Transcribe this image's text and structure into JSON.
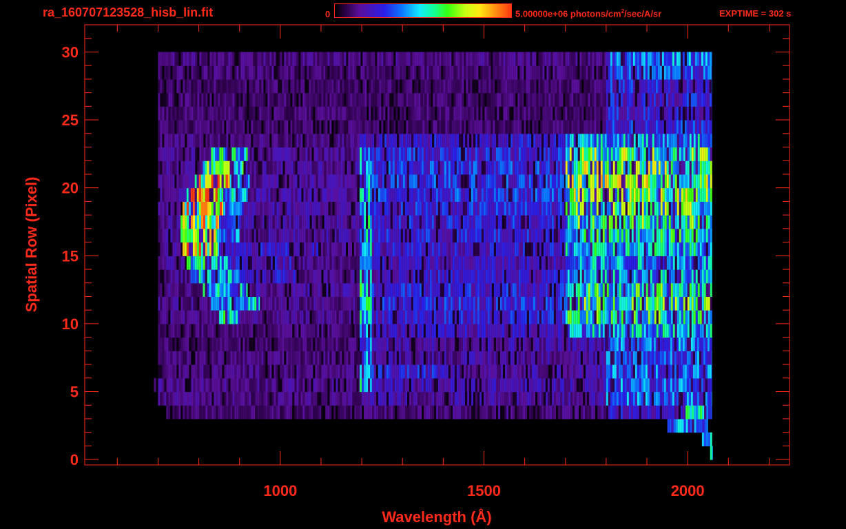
{
  "header": {
    "file_name": "ra_160707123528_hisb_lin.fit",
    "colorbar_min": "0",
    "colorbar_max_value": "5.00000e+06 photons/cm",
    "colorbar_max_exp": "2",
    "colorbar_max_unit": "/sec/A/sr",
    "exptime": "EXPTIME = 302 s"
  },
  "colors": {
    "text": "#ff2a1a",
    "background": "#000000",
    "colormap": [
      "#000000",
      "#5a0f9a",
      "#2a1ee6",
      "#0a78ff",
      "#12eaff",
      "#36ff12",
      "#ffea12",
      "#ff3a12"
    ]
  },
  "chart_data": {
    "type": "heatmap",
    "title": "",
    "xlabel": "Wavelength (Å)",
    "ylabel": "Spatial Row (Pixel)",
    "xlim": [
      520,
      2250
    ],
    "ylim": [
      -0.4,
      32
    ],
    "x_ticks": [
      1000,
      1500,
      2000
    ],
    "x_minor_step": 100,
    "y_ticks": [
      0,
      5,
      10,
      15,
      20,
      25,
      30
    ],
    "y_minor_step": 1,
    "grid": false,
    "colorbar": {
      "min": 0,
      "max": 5000000,
      "units": "photons/cm^2/sec/A/sr",
      "position": "top"
    },
    "rows": [
      {
        "row": 0,
        "segments": [
          [
            2055,
            2062,
            0.4
          ]
        ]
      },
      {
        "row": 1,
        "segments": [
          [
            2035,
            2060,
            0.42
          ]
        ]
      },
      {
        "row": 2,
        "segments": [
          [
            1950,
            2050,
            0.36
          ]
        ]
      },
      {
        "row": 3,
        "segments": [
          [
            720,
            1200,
            0.1
          ],
          [
            1200,
            1800,
            0.12
          ],
          [
            1800,
            1995,
            0.22
          ],
          [
            1995,
            2060,
            0.44
          ]
        ]
      },
      {
        "row": 4,
        "segments": [
          [
            700,
            1200,
            0.12
          ],
          [
            1200,
            1800,
            0.16
          ],
          [
            1800,
            2060,
            0.34
          ]
        ]
      },
      {
        "row": 5,
        "segments": [
          [
            690,
            1195,
            0.13
          ],
          [
            1195,
            1225,
            0.45
          ],
          [
            1225,
            1800,
            0.18
          ],
          [
            1800,
            2060,
            0.34
          ]
        ]
      },
      {
        "row": 6,
        "segments": [
          [
            700,
            1195,
            0.12
          ],
          [
            1195,
            1225,
            0.45
          ],
          [
            1225,
            1440,
            0.24
          ],
          [
            1440,
            1800,
            0.16
          ],
          [
            1800,
            2060,
            0.34
          ]
        ]
      },
      {
        "row": 7,
        "segments": [
          [
            700,
            1195,
            0.11
          ],
          [
            1195,
            1225,
            0.38
          ],
          [
            1225,
            1800,
            0.16
          ],
          [
            1800,
            2060,
            0.32
          ]
        ]
      },
      {
        "row": 8,
        "segments": [
          [
            700,
            1195,
            0.1
          ],
          [
            1195,
            1225,
            0.34
          ],
          [
            1225,
            1800,
            0.17
          ],
          [
            1800,
            2060,
            0.36
          ]
        ]
      },
      {
        "row": 9,
        "segments": [
          [
            700,
            1195,
            0.11
          ],
          [
            1195,
            1225,
            0.36
          ],
          [
            1225,
            1700,
            0.2
          ],
          [
            1700,
            2060,
            0.42
          ]
        ]
      },
      {
        "row": 10,
        "segments": [
          [
            700,
            850,
            0.13
          ],
          [
            850,
            900,
            0.5
          ],
          [
            900,
            1195,
            0.13
          ],
          [
            1195,
            1225,
            0.42
          ],
          [
            1225,
            1700,
            0.24
          ],
          [
            1700,
            2060,
            0.5
          ]
        ]
      },
      {
        "row": 11,
        "segments": [
          [
            700,
            830,
            0.13
          ],
          [
            830,
            950,
            0.44
          ],
          [
            950,
            1195,
            0.13
          ],
          [
            1195,
            1225,
            0.46
          ],
          [
            1225,
            1700,
            0.26
          ],
          [
            1700,
            2060,
            0.54
          ]
        ]
      },
      {
        "row": 12,
        "segments": [
          [
            700,
            810,
            0.13
          ],
          [
            810,
            920,
            0.44
          ],
          [
            920,
            1195,
            0.15
          ],
          [
            1195,
            1225,
            0.46
          ],
          [
            1225,
            1700,
            0.25
          ],
          [
            1700,
            2060,
            0.5
          ]
        ]
      },
      {
        "row": 13,
        "segments": [
          [
            700,
            780,
            0.13
          ],
          [
            780,
            900,
            0.4
          ],
          [
            900,
            1040,
            0.22
          ],
          [
            1040,
            1195,
            0.14
          ],
          [
            1195,
            1225,
            0.44
          ],
          [
            1225,
            1700,
            0.22
          ],
          [
            1700,
            2060,
            0.4
          ]
        ]
      },
      {
        "row": 14,
        "segments": [
          [
            700,
            770,
            0.14
          ],
          [
            770,
            880,
            0.45
          ],
          [
            880,
            1030,
            0.22
          ],
          [
            1030,
            1195,
            0.13
          ],
          [
            1195,
            1225,
            0.4
          ],
          [
            1225,
            1700,
            0.2
          ],
          [
            1700,
            2060,
            0.4
          ]
        ]
      },
      {
        "row": 15,
        "segments": [
          [
            700,
            760,
            0.15
          ],
          [
            760,
            850,
            0.74
          ],
          [
            850,
            1100,
            0.22
          ],
          [
            1100,
            1195,
            0.14
          ],
          [
            1195,
            1225,
            0.42
          ],
          [
            1225,
            1700,
            0.22
          ],
          [
            1700,
            2060,
            0.44
          ]
        ]
      },
      {
        "row": 16,
        "segments": [
          [
            700,
            755,
            0.15
          ],
          [
            755,
            845,
            0.78
          ],
          [
            845,
            900,
            0.34
          ],
          [
            900,
            1195,
            0.16
          ],
          [
            1195,
            1225,
            0.44
          ],
          [
            1225,
            1700,
            0.24
          ],
          [
            1700,
            2060,
            0.48
          ]
        ]
      },
      {
        "row": 17,
        "segments": [
          [
            700,
            755,
            0.15
          ],
          [
            755,
            850,
            0.76
          ],
          [
            850,
            900,
            0.34
          ],
          [
            900,
            1195,
            0.16
          ],
          [
            1195,
            1225,
            0.44
          ],
          [
            1225,
            1700,
            0.25
          ],
          [
            1700,
            2060,
            0.52
          ]
        ]
      },
      {
        "row": 18,
        "segments": [
          [
            700,
            760,
            0.15
          ],
          [
            760,
            860,
            0.78
          ],
          [
            860,
            910,
            0.36
          ],
          [
            910,
            1195,
            0.16
          ],
          [
            1195,
            1225,
            0.44
          ],
          [
            1225,
            1700,
            0.26
          ],
          [
            1700,
            2060,
            0.56
          ]
        ]
      },
      {
        "row": 19,
        "segments": [
          [
            700,
            770,
            0.15
          ],
          [
            770,
            860,
            0.8
          ],
          [
            860,
            920,
            0.4
          ],
          [
            920,
            1195,
            0.16
          ],
          [
            1195,
            1225,
            0.44
          ],
          [
            1225,
            1700,
            0.28
          ],
          [
            1700,
            2060,
            0.6
          ]
        ]
      },
      {
        "row": 20,
        "segments": [
          [
            700,
            790,
            0.14
          ],
          [
            790,
            880,
            0.74
          ],
          [
            880,
            925,
            0.36
          ],
          [
            925,
            1195,
            0.15
          ],
          [
            1195,
            1225,
            0.42
          ],
          [
            1225,
            1700,
            0.28
          ],
          [
            1700,
            2060,
            0.62
          ]
        ]
      },
      {
        "row": 21,
        "segments": [
          [
            700,
            810,
            0.14
          ],
          [
            810,
            910,
            0.56
          ],
          [
            910,
            1195,
            0.15
          ],
          [
            1195,
            1225,
            0.4
          ],
          [
            1225,
            1700,
            0.28
          ],
          [
            1700,
            2060,
            0.6
          ]
        ]
      },
      {
        "row": 22,
        "segments": [
          [
            700,
            830,
            0.14
          ],
          [
            830,
            920,
            0.48
          ],
          [
            920,
            1195,
            0.14
          ],
          [
            1195,
            1225,
            0.4
          ],
          [
            1225,
            1700,
            0.26
          ],
          [
            1700,
            2060,
            0.58
          ]
        ]
      },
      {
        "row": 23,
        "segments": [
          [
            700,
            1190,
            0.12
          ],
          [
            1190,
            1700,
            0.22
          ],
          [
            1700,
            2060,
            0.4
          ]
        ]
      },
      {
        "row": 24,
        "segments": [
          [
            700,
            1800,
            0.1
          ],
          [
            1800,
            2060,
            0.26
          ]
        ]
      },
      {
        "row": 25,
        "segments": [
          [
            700,
            1800,
            0.1
          ],
          [
            1800,
            2060,
            0.24
          ]
        ]
      },
      {
        "row": 26,
        "segments": [
          [
            700,
            1800,
            0.1
          ],
          [
            1800,
            2060,
            0.24
          ]
        ]
      },
      {
        "row": 27,
        "segments": [
          [
            700,
            1800,
            0.1
          ],
          [
            1800,
            2060,
            0.26
          ]
        ]
      },
      {
        "row": 28,
        "segments": [
          [
            700,
            1800,
            0.11
          ],
          [
            1800,
            2060,
            0.3
          ]
        ]
      },
      {
        "row": 29,
        "segments": [
          [
            700,
            1800,
            0.12
          ],
          [
            1800,
            2060,
            0.36
          ]
        ]
      }
    ]
  }
}
